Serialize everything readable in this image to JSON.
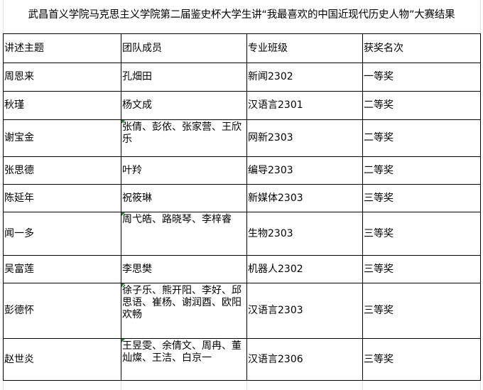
{
  "title": "武昌首义学院马克思主义学院第二届鉴史杯大学生讲“我最喜欢的中国近现代历史人物”大赛结果",
  "headers": [
    "讲述主题",
    "团队成员",
    "专业班级",
    "获奖名次"
  ],
  "rows": [
    {
      "topic": "周恩来",
      "members": "孔畑田",
      "class": "新闻2302",
      "award": "一等奖"
    },
    {
      "topic": "秋瑾",
      "members": "杨文成",
      "class": "汉语言2301",
      "award": "二等奖"
    },
    {
      "topic": "谢宝金",
      "members": "张倩、彭依、张家营、王欣乐",
      "class": "网新2303",
      "award": "二等奖"
    },
    {
      "topic": "张思德",
      "members": "叶羚",
      "class": "编导2303",
      "award": "二等奖"
    },
    {
      "topic": "陈延年",
      "members": "祝筱琳",
      "class": "新媒体2303",
      "award": "三等奖"
    },
    {
      "topic": "闻一多",
      "members": "周弋皓、路晓琴、李梓睿",
      "class": "生物2303",
      "award": "三等奖"
    },
    {
      "topic": "吴富莲",
      "members": "李思樊",
      "class": "机器人2302",
      "award": "三等奖"
    },
    {
      "topic": "彭德怀",
      "members": "徐子乐、熊开阳、李好、邱思语、崔杨、谢润酉、欧阳欢畅",
      "class": "汉语言2303",
      "award": "三等奖"
    },
    {
      "topic": "赵世炎",
      "members": "王昱雯、余倩文、周冉、董灿燦、王洁、白京一",
      "class": "汉语言2306",
      "award": "三等奖"
    }
  ]
}
